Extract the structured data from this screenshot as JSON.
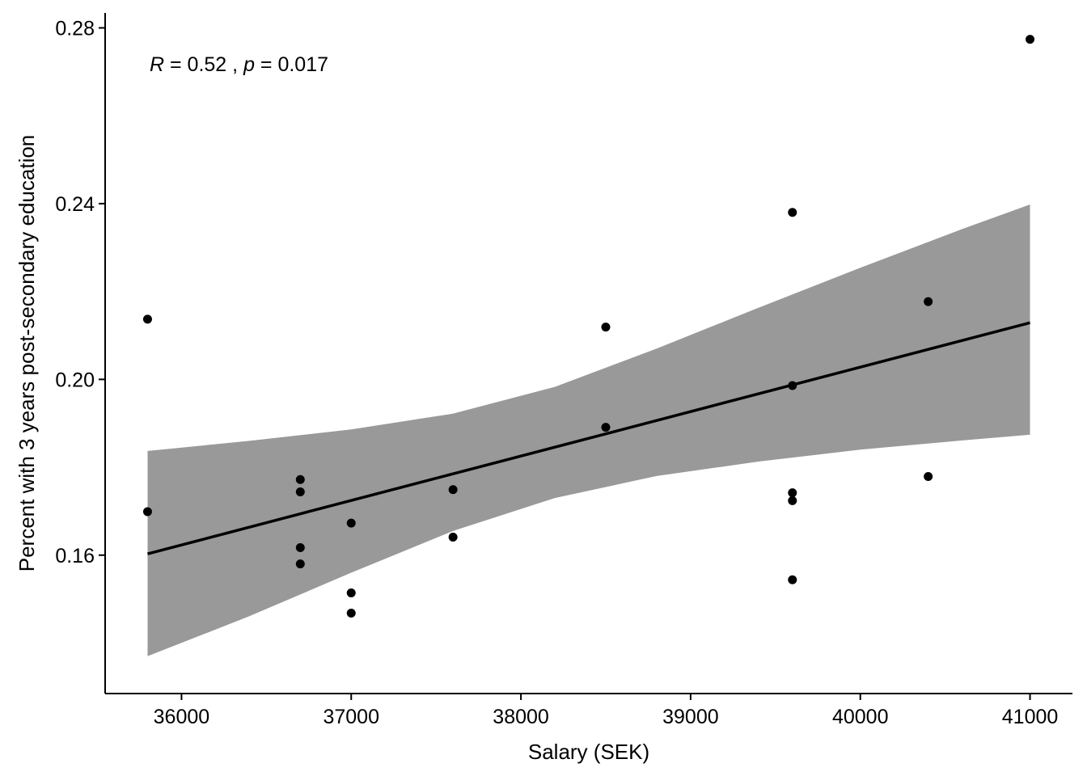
{
  "chart_data": {
    "type": "scatter",
    "xlabel": "Salary (SEK)",
    "ylabel": "Percent with 3 years post-secondary education",
    "xlim": [
      35550,
      41250
    ],
    "ylim": [
      0.1285,
      0.2834
    ],
    "x_ticks": [
      "36000",
      "37000",
      "38000",
      "39000",
      "40000",
      "41000"
    ],
    "y_ticks": [
      "0.16",
      "0.20",
      "0.24",
      "0.28"
    ],
    "annotation": {
      "r_symbol": "R",
      "r_text": " = 0.52 , ",
      "p_symbol": "p",
      "p_text": " = 0.017"
    },
    "points": [
      {
        "x": 35800,
        "y": 0.2137
      },
      {
        "x": 35800,
        "y": 0.1699
      },
      {
        "x": 36700,
        "y": 0.1772
      },
      {
        "x": 36700,
        "y": 0.1744
      },
      {
        "x": 36700,
        "y": 0.1617
      },
      {
        "x": 36700,
        "y": 0.158
      },
      {
        "x": 37000,
        "y": 0.1673
      },
      {
        "x": 37000,
        "y": 0.1514
      },
      {
        "x": 37000,
        "y": 0.1468
      },
      {
        "x": 37600,
        "y": 0.1749
      },
      {
        "x": 37600,
        "y": 0.1641
      },
      {
        "x": 38500,
        "y": 0.2119
      },
      {
        "x": 38500,
        "y": 0.1891
      },
      {
        "x": 39600,
        "y": 0.238
      },
      {
        "x": 39600,
        "y": 0.1986
      },
      {
        "x": 39600,
        "y": 0.1742
      },
      {
        "x": 39600,
        "y": 0.1724
      },
      {
        "x": 39600,
        "y": 0.1544
      },
      {
        "x": 40400,
        "y": 0.2177
      },
      {
        "x": 40400,
        "y": 0.1779
      },
      {
        "x": 41000,
        "y": 0.2774
      }
    ],
    "fit_line": {
      "x": [
        35800,
        41000
      ],
      "y": [
        0.1603,
        0.2129
      ]
    },
    "confidence_band": {
      "x": [
        35800,
        36400,
        37000,
        37600,
        38200,
        38800,
        39400,
        40000,
        40600,
        41000
      ],
      "upper": [
        0.1837,
        0.186,
        0.1886,
        0.1922,
        0.1983,
        0.207,
        0.2163,
        0.2254,
        0.2342,
        0.2398
      ],
      "lower": [
        0.137,
        0.1461,
        0.156,
        0.1655,
        0.173,
        0.178,
        0.1813,
        0.184,
        0.1861,
        0.1874
      ]
    },
    "colors": {
      "points": "#000000",
      "line": "#000000",
      "band": "#999999"
    },
    "grid": false,
    "legend": "none"
  }
}
